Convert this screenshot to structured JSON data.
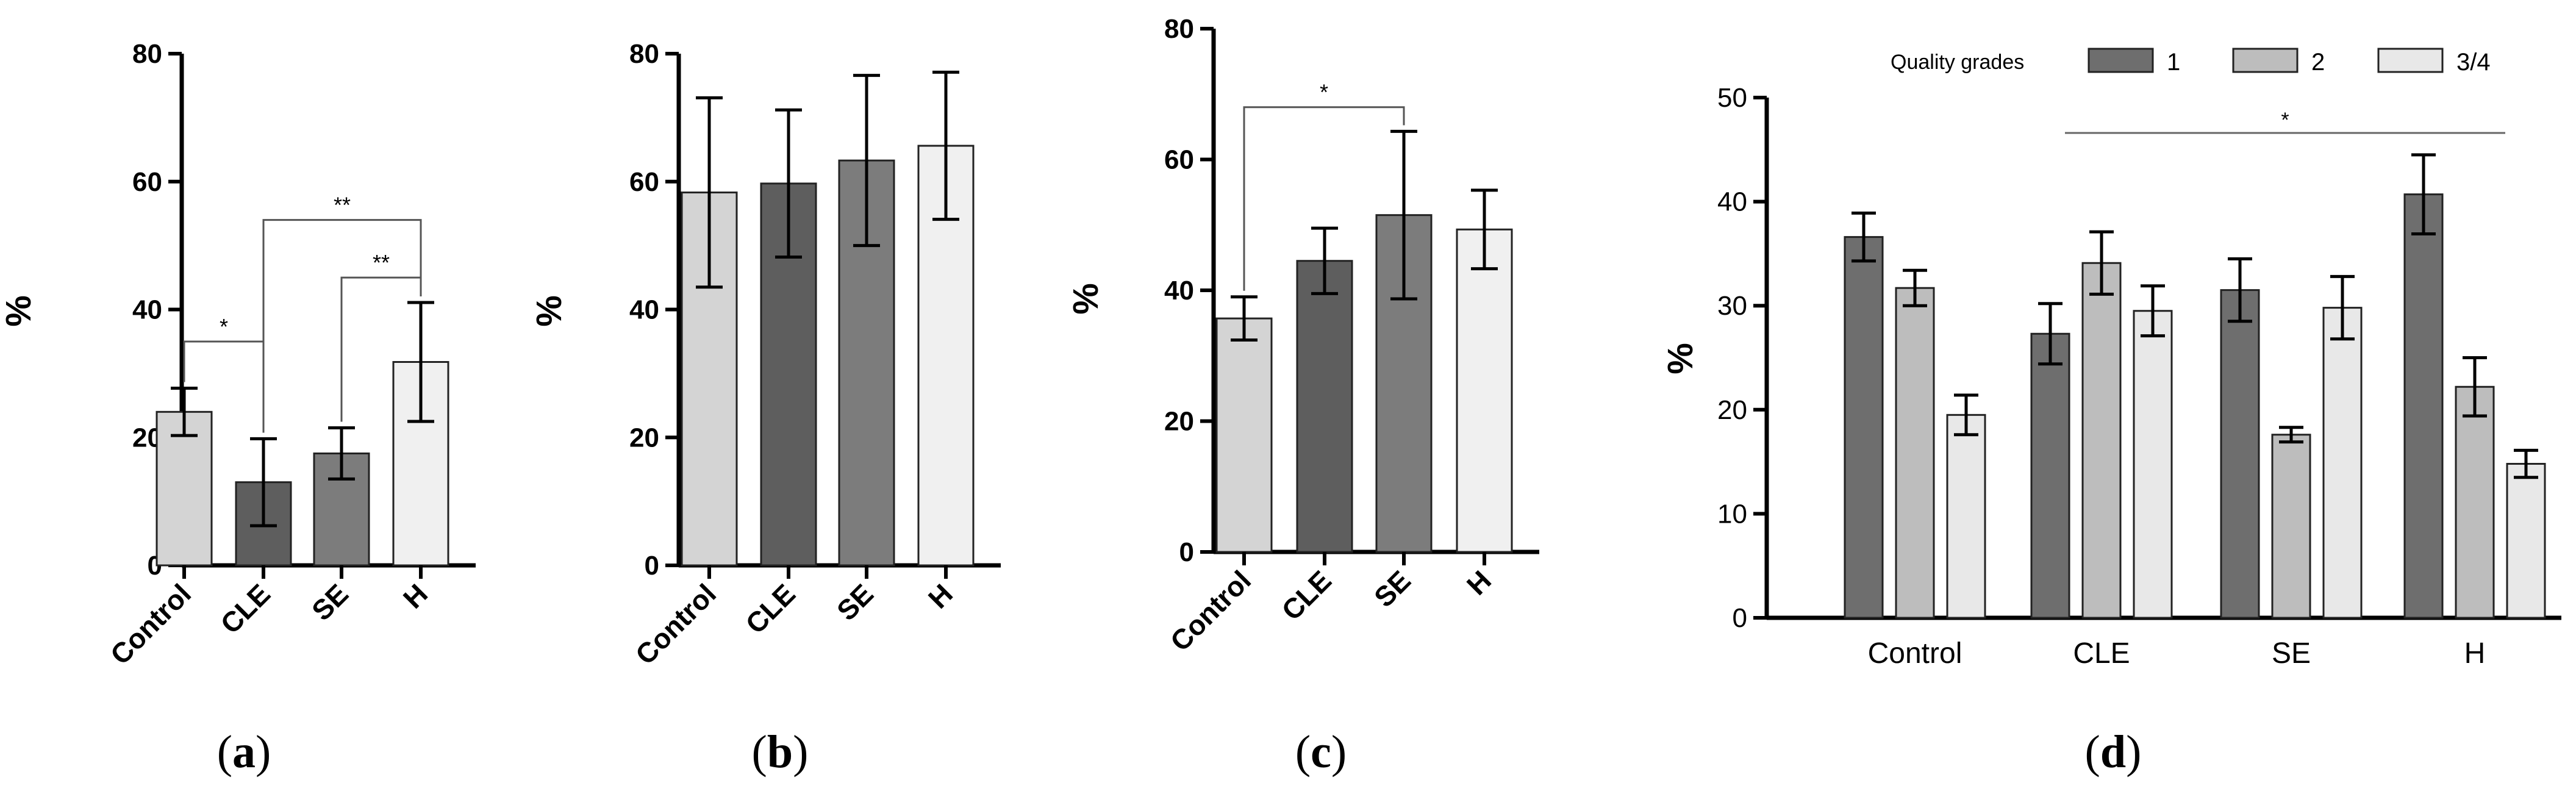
{
  "chart_data": [
    {
      "panel": "a",
      "type": "bar",
      "caption": {
        "open": "(",
        "letter": "a",
        "close": ")"
      },
      "categories": [
        "Control",
        "CLE",
        "SE",
        "H"
      ],
      "values": [
        24,
        13,
        17.5,
        31.8
      ],
      "errors": [
        3.7,
        6.8,
        4,
        9.3
      ],
      "colors": [
        "#d4d4d4",
        "#5e5e5e",
        "#7c7c7c",
        "#f0f0f0"
      ],
      "ylabel": "%",
      "ylim": [
        0,
        80
      ],
      "yticks": [
        0,
        20,
        40,
        60,
        80
      ],
      "significance": [
        {
          "from": 0,
          "to": 1,
          "label": "*",
          "y": 35
        },
        {
          "from": 1,
          "to": 3,
          "label": "**",
          "y": 54
        },
        {
          "from": 2,
          "to": 3,
          "label": "**",
          "y": 45
        }
      ]
    },
    {
      "panel": "b",
      "type": "bar",
      "caption": {
        "open": "(",
        "letter": "b",
        "close": ")"
      },
      "categories": [
        "Control",
        "CLE",
        "SE",
        "H"
      ],
      "values": [
        58.3,
        59.7,
        63.3,
        65.6
      ],
      "errors": [
        14.8,
        11.5,
        13.3,
        11.5
      ],
      "colors": [
        "#d4d4d4",
        "#5e5e5e",
        "#7c7c7c",
        "#f0f0f0"
      ],
      "ylabel": "%",
      "ylim": [
        0,
        80
      ],
      "yticks": [
        0,
        20,
        40,
        60,
        80
      ],
      "significance": []
    },
    {
      "panel": "c",
      "type": "bar",
      "caption": {
        "open": "(",
        "letter": "c",
        "close": ")"
      },
      "categories": [
        "Control",
        "CLE",
        "SE",
        "H"
      ],
      "values": [
        35.7,
        44.5,
        51.5,
        49.3
      ],
      "errors": [
        3.3,
        5,
        12.8,
        6
      ],
      "colors": [
        "#d4d4d4",
        "#5e5e5e",
        "#7c7c7c",
        "#f0f0f0"
      ],
      "ylabel": "%",
      "ylim": [
        0,
        80
      ],
      "yticks": [
        0,
        20,
        40,
        60,
        80
      ],
      "significance": [
        {
          "from": 0,
          "to": 2,
          "label": "*",
          "y": 68
        }
      ]
    },
    {
      "panel": "d",
      "type": "bar",
      "caption": {
        "open": "(",
        "letter": "d",
        "close": ")"
      },
      "categories": [
        "Control",
        "CLE",
        "SE",
        "H"
      ],
      "legend_title": "Quality grades",
      "series": [
        {
          "name": "1",
          "color": "#6e6e6e",
          "values": [
            36.6,
            27.3,
            31.5,
            40.7
          ],
          "errors": [
            2.3,
            2.9,
            3,
            3.8
          ]
        },
        {
          "name": "2",
          "color": "#bdbdbd",
          "values": [
            31.7,
            34.1,
            17.6,
            22.2
          ],
          "errors": [
            1.7,
            3,
            0.7,
            2.8
          ]
        },
        {
          "name": "3/4",
          "color": "#e8e8e8",
          "values": [
            19.5,
            29.5,
            29.8,
            14.8
          ],
          "errors": [
            1.9,
            2.4,
            3,
            1.3
          ]
        }
      ],
      "ylabel": "%",
      "ylim": [
        0,
        50
      ],
      "yticks": [
        0,
        10,
        20,
        30,
        40,
        50
      ],
      "significance": [
        {
          "from": 1,
          "to": 3,
          "label": "*",
          "y": 46.6
        }
      ]
    }
  ]
}
